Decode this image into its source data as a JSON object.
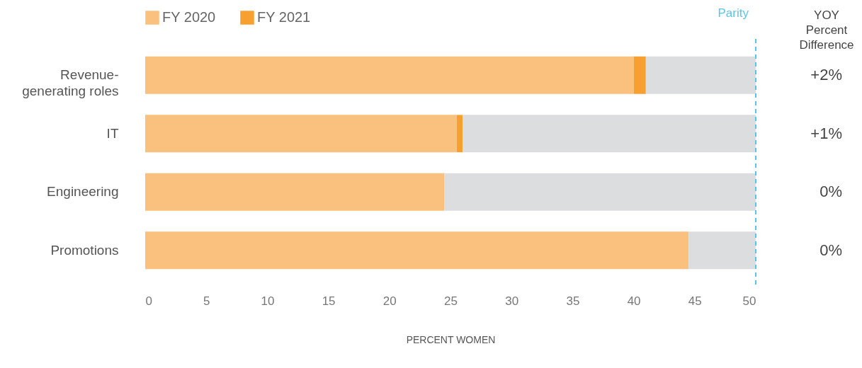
{
  "chart_data": {
    "type": "bar",
    "orientation": "horizontal",
    "stacked": true,
    "categories": [
      "Revenue-generating roles",
      "IT",
      "Engineering",
      "Promotions"
    ],
    "series": [
      {
        "name": "FY 2020",
        "color": "#fac17e",
        "values": [
          40,
          25.5,
          24.5,
          44.5
        ]
      },
      {
        "name": "FY 2021",
        "color": "#f7a030",
        "values": [
          1,
          0.5,
          0,
          0
        ]
      },
      {
        "color": "#dcdddf",
        "values": [
          9,
          24,
          25.5,
          5.5
        ]
      }
    ],
    "xlim": [
      0,
      50
    ],
    "xticks": [
      0,
      5,
      10,
      15,
      20,
      25,
      30,
      35,
      40,
      45,
      50
    ],
    "xlabel": "PERCENT WOMEN",
    "grid": false,
    "legend": "top left",
    "ref_lines": [
      {
        "axis": "x",
        "value": 50,
        "label": "Parity",
        "color": "#5bc4e6",
        "line_style": "dashed"
      }
    ],
    "annotations": [
      "YOY Percent Difference",
      "+2%",
      "+1%",
      "0%",
      "0%"
    ]
  }
}
